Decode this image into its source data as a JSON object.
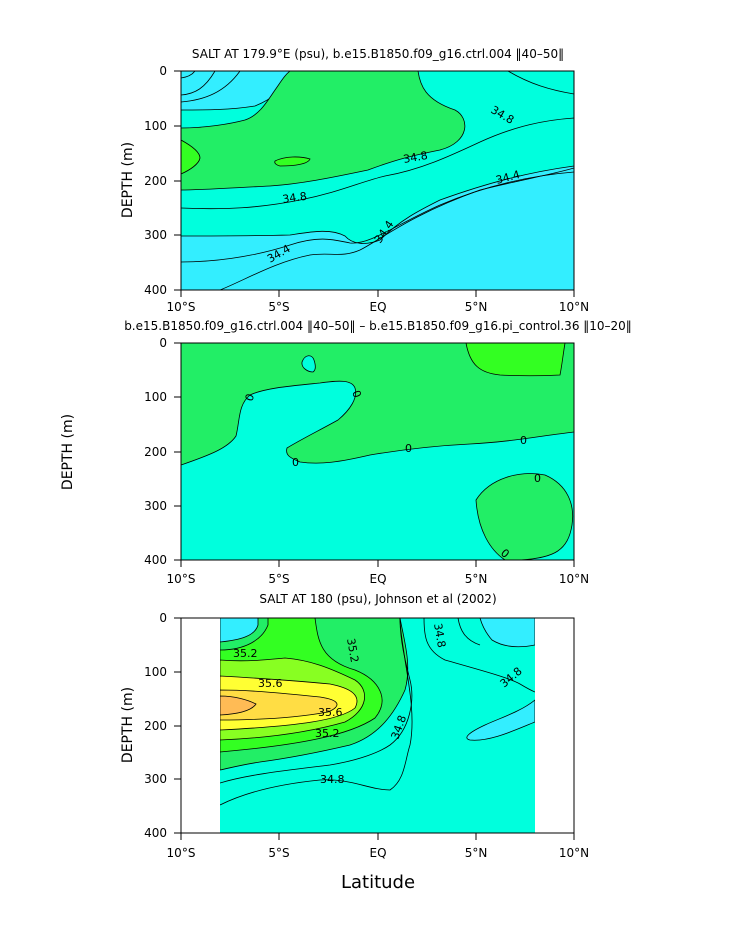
{
  "figure": {
    "x_axis_label": "Latitude",
    "y_axis_label": "DEPTH (m)"
  },
  "chart_data": [
    {
      "type": "contour",
      "title": "SALT AT 179.9°E (psu), b.e15.B1850.f09_g16.ctrl.004 ‖40–50‖",
      "xlabel": "",
      "ylabel": "DEPTH (m)",
      "x_range": [
        -10,
        10
      ],
      "y_range": [
        0,
        400
      ],
      "y_reversed": true,
      "x_ticks": [
        "10°S",
        "5°S",
        "EQ",
        "5°N",
        "10°N"
      ],
      "y_ticks": [
        "0",
        "100",
        "200",
        "300",
        "400"
      ],
      "contour_labels": [
        "34.8",
        "34.8",
        "34.8",
        "34.4",
        "34.4",
        "34.4"
      ],
      "fill_colors": {
        "low": "#33eeff",
        "mid": "#00ffdd",
        "high": "#22ee66",
        "higher": "#33ff22"
      }
    },
    {
      "type": "contour",
      "title": "b.e15.B1850.f09_g16.ctrl.004 ‖40–50‖ – b.e15.B1850.f09_g16.pi_control.36 ‖10–20‖",
      "xlabel": "",
      "ylabel": "DEPTH (m)",
      "x_range": [
        -10,
        10
      ],
      "y_range": [
        0,
        400
      ],
      "y_reversed": true,
      "x_ticks": [
        "10°S",
        "5°S",
        "EQ",
        "5°N",
        "10°N"
      ],
      "y_ticks": [
        "0",
        "100",
        "200",
        "300",
        "400"
      ],
      "contour_labels": [
        "0",
        "0",
        "0",
        "0",
        "0",
        "0",
        "0"
      ],
      "fill_colors": {
        "negative": "#00ffdd",
        "positive": "#22ee66",
        "higher": "#33ff22"
      }
    },
    {
      "type": "contour",
      "title": "SALT AT 180 (psu), Johnson et al (2002)",
      "xlabel": "Latitude",
      "ylabel": "DEPTH (m)",
      "x_range": [
        -10,
        10
      ],
      "y_range": [
        0,
        400
      ],
      "y_reversed": true,
      "x_ticks": [
        "10°S",
        "5°S",
        "EQ",
        "5°N",
        "10°N"
      ],
      "y_ticks": [
        "0",
        "100",
        "200",
        "300",
        "400"
      ],
      "data_x_range": [
        -8,
        8
      ],
      "contour_labels": [
        "35.2",
        "35.2",
        "35.6",
        "35.6",
        "35.2",
        "34.8",
        "34.8",
        "34.8",
        "34.8"
      ],
      "fill_colors": {
        "low": "#33eeff",
        "mid": "#00ffdd",
        "green1": "#22ee66",
        "green2": "#33ff22",
        "green3": "#88ff22",
        "yellow": "#ffff33",
        "yellow2": "#ffdd44",
        "orange": "#ffbb55"
      }
    }
  ]
}
